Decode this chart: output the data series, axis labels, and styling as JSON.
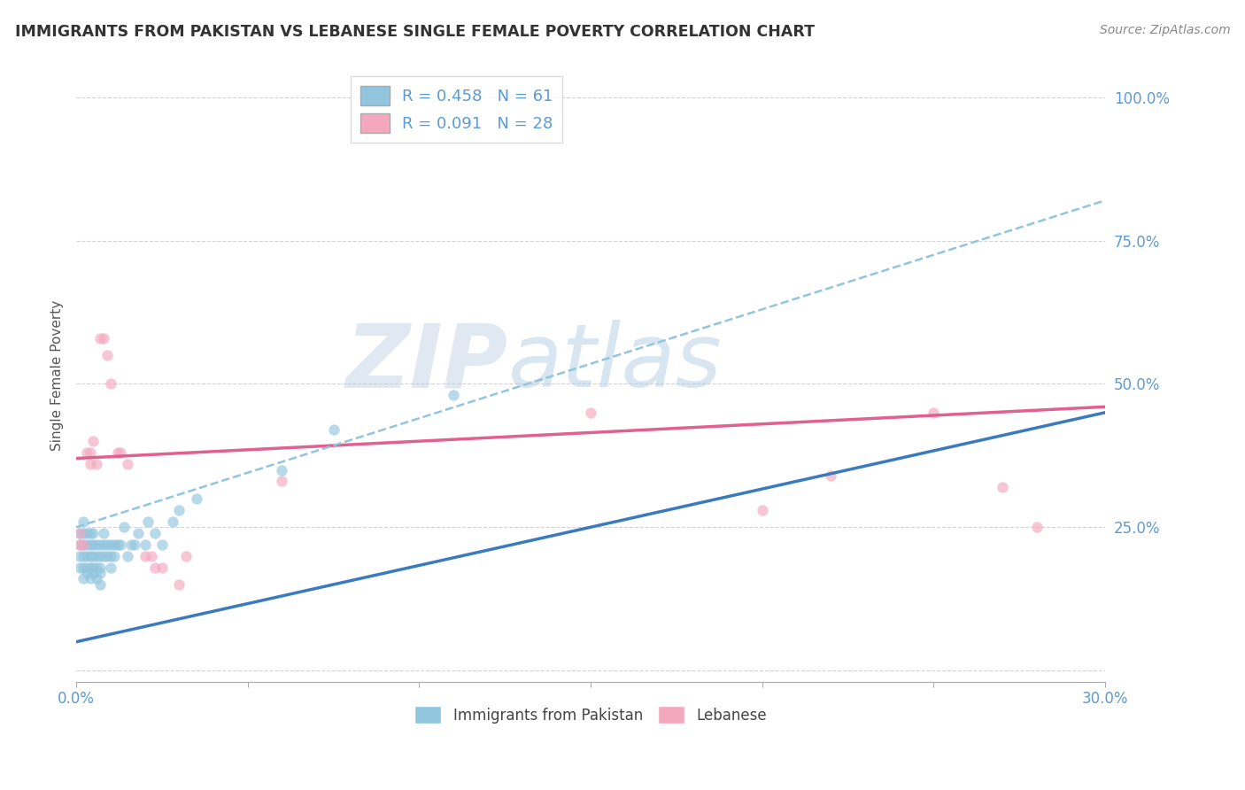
{
  "title": "IMMIGRANTS FROM PAKISTAN VS LEBANESE SINGLE FEMALE POVERTY CORRELATION CHART",
  "source": "Source: ZipAtlas.com",
  "ylabel": "Single Female Poverty",
  "xlim": [
    0.0,
    0.3
  ],
  "ylim": [
    -0.02,
    1.05
  ],
  "xticks": [
    0.0,
    0.05,
    0.1,
    0.15,
    0.2,
    0.25,
    0.3
  ],
  "xtick_labels": [
    "0.0%",
    "",
    "",
    "",
    "",
    "",
    "30.0%"
  ],
  "yticks": [
    0.0,
    0.25,
    0.5,
    0.75,
    1.0
  ],
  "ytick_labels": [
    "",
    "25.0%",
    "50.0%",
    "75.0%",
    "100.0%"
  ],
  "blue_color": "#92c5de",
  "pink_color": "#f4a8be",
  "blue_line_color": "#3a7abf",
  "pink_line_color": "#e06090",
  "dashed_line_color": "#92c5de",
  "legend_r1": "R = 0.458",
  "legend_n1": "N = 61",
  "legend_r2": "R = 0.091",
  "legend_n2": "N = 28",
  "watermark_zip": "ZIP",
  "watermark_atlas": "atlas",
  "blue_scatter_x": [
    0.001,
    0.001,
    0.001,
    0.001,
    0.002,
    0.002,
    0.002,
    0.002,
    0.002,
    0.002,
    0.003,
    0.003,
    0.003,
    0.003,
    0.003,
    0.004,
    0.004,
    0.004,
    0.004,
    0.004,
    0.005,
    0.005,
    0.005,
    0.005,
    0.005,
    0.006,
    0.006,
    0.006,
    0.006,
    0.007,
    0.007,
    0.007,
    0.007,
    0.007,
    0.008,
    0.008,
    0.008,
    0.009,
    0.009,
    0.01,
    0.01,
    0.01,
    0.011,
    0.011,
    0.012,
    0.013,
    0.014,
    0.015,
    0.016,
    0.017,
    0.018,
    0.02,
    0.021,
    0.023,
    0.025,
    0.028,
    0.03,
    0.035,
    0.06,
    0.075,
    0.11
  ],
  "blue_scatter_y": [
    0.22,
    0.18,
    0.2,
    0.24,
    0.16,
    0.2,
    0.22,
    0.24,
    0.18,
    0.26,
    0.17,
    0.2,
    0.22,
    0.18,
    0.24,
    0.16,
    0.2,
    0.22,
    0.24,
    0.18,
    0.17,
    0.2,
    0.22,
    0.18,
    0.24,
    0.16,
    0.2,
    0.22,
    0.18,
    0.17,
    0.2,
    0.22,
    0.18,
    0.15,
    0.2,
    0.22,
    0.24,
    0.2,
    0.22,
    0.2,
    0.22,
    0.18,
    0.22,
    0.2,
    0.22,
    0.22,
    0.25,
    0.2,
    0.22,
    0.22,
    0.24,
    0.22,
    0.26,
    0.24,
    0.22,
    0.26,
    0.28,
    0.3,
    0.35,
    0.42,
    0.48
  ],
  "pink_scatter_x": [
    0.001,
    0.001,
    0.002,
    0.003,
    0.004,
    0.004,
    0.005,
    0.006,
    0.007,
    0.008,
    0.009,
    0.01,
    0.012,
    0.013,
    0.015,
    0.02,
    0.022,
    0.023,
    0.025,
    0.03,
    0.032,
    0.06,
    0.15,
    0.2,
    0.22,
    0.25,
    0.27,
    0.28
  ],
  "pink_scatter_y": [
    0.22,
    0.24,
    0.22,
    0.38,
    0.38,
    0.36,
    0.4,
    0.36,
    0.58,
    0.58,
    0.55,
    0.5,
    0.38,
    0.38,
    0.36,
    0.2,
    0.2,
    0.18,
    0.18,
    0.15,
    0.2,
    0.33,
    0.45,
    0.28,
    0.34,
    0.45,
    0.32,
    0.25
  ],
  "blue_trend_x": [
    0.0,
    0.3
  ],
  "blue_trend_y": [
    0.05,
    0.45
  ],
  "pink_trend_x": [
    0.0,
    0.3
  ],
  "pink_trend_y": [
    0.37,
    0.46
  ],
  "dashed_trend_x": [
    0.0,
    0.3
  ],
  "dashed_trend_y": [
    0.25,
    0.82
  ]
}
